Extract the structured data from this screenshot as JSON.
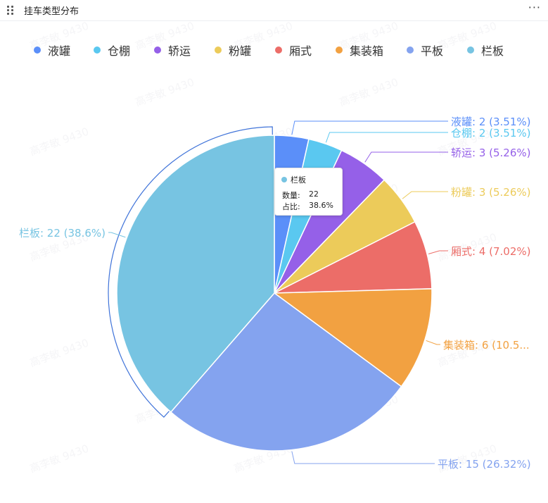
{
  "panel": {
    "title": "挂车类型分布",
    "more_icon": "more-horizontal-icon",
    "drag_icon": "drag-handle-icon"
  },
  "watermark_text": "高李敏 9430",
  "chart_data": {
    "type": "pie",
    "title": "",
    "legend_position": "top",
    "slices": [
      {
        "name": "液罐",
        "value": 2,
        "percent": "3.51%",
        "color": "#5b8ff9",
        "label": "液罐: 2 (3.51%)"
      },
      {
        "name": "仓棚",
        "value": 2,
        "percent": "3.51%",
        "color": "#5ac8f0",
        "label": "仓棚: 2 (3.51%)"
      },
      {
        "name": "轿运",
        "value": 3,
        "percent": "5.26%",
        "color": "#9560e8",
        "label": "轿运: 3 (5.26%)"
      },
      {
        "name": "粉罐",
        "value": 3,
        "percent": "5.26%",
        "color": "#eccb5a",
        "label": "粉罐: 3 (5.26%)"
      },
      {
        "name": "厢式",
        "value": 4,
        "percent": "7.02%",
        "color": "#ec6d68",
        "label": "厢式: 4 (7.02%)"
      },
      {
        "name": "集装箱",
        "value": 6,
        "percent": "10.53%",
        "color": "#f2a141",
        "label": "集装箱: 6 (10.5..."
      },
      {
        "name": "平板",
        "value": 15,
        "percent": "26.32%",
        "color": "#84a3ef",
        "label": "平板: 15 (26.32%)"
      },
      {
        "name": "栏板",
        "value": 22,
        "percent": "38.6%",
        "color": "#77c4e2",
        "label": "栏板: 22 (38.6%)"
      }
    ],
    "highlighted": "栏板"
  },
  "tooltip": {
    "series": "栏板",
    "color": "#77c4e2",
    "count_label": "数量:",
    "count_value": "22",
    "ratio_label": "占比:",
    "ratio_value": "38.6%"
  }
}
